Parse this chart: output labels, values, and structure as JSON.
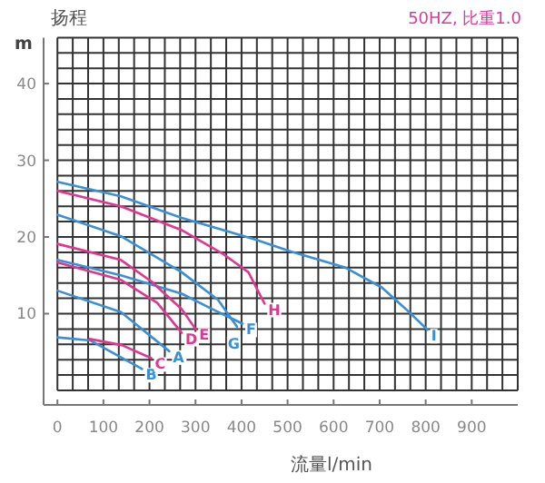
{
  "chart_data": {
    "type": "line",
    "ylabel": "扬程",
    "xlabel": "流量l/min",
    "annotations": [
      "m",
      "50HZ, 比重1.0"
    ],
    "xlim": [
      -30,
      1000
    ],
    "ylim": [
      -1.9,
      46
    ],
    "xticks": [
      0,
      100,
      200,
      300,
      400,
      500,
      600,
      700,
      800,
      900
    ],
    "yticks": [
      10,
      20,
      30,
      40
    ],
    "grid": true,
    "legend": false,
    "marker": "none",
    "line_style": "solid",
    "series": [
      {
        "name": "I",
        "color": "#3b8fd4",
        "x": [
          0,
          138,
          270,
          428,
          507,
          626,
          705,
          757,
          804
        ],
        "values": [
          27.2,
          25.3,
          22.5,
          19.7,
          18.1,
          16.0,
          13.4,
          10.6,
          7.9
        ]
      },
      {
        "name": "H",
        "color": "#e0368f",
        "x": [
          0,
          138,
          270,
          362,
          415,
          450
        ],
        "values": [
          26.0,
          24.0,
          20.9,
          17.7,
          15.4,
          11.3
        ]
      },
      {
        "name": "G",
        "color": "#3b8fd4",
        "x": [
          0,
          138,
          270,
          349,
          390
        ],
        "values": [
          22.9,
          20.1,
          15.4,
          11.8,
          8.3
        ]
      },
      {
        "name": "F",
        "color": "#3b8fd4",
        "x": [
          0,
          138,
          270,
          336,
          402
        ],
        "values": [
          17.0,
          15.0,
          12.6,
          10.6,
          8.7
        ]
      },
      {
        "name": "E",
        "color": "#e0368f",
        "x": [
          0,
          138,
          204,
          270,
          300
        ],
        "values": [
          19.1,
          17.0,
          14.2,
          10.6,
          8.0
        ]
      },
      {
        "name": "D",
        "color": "#e0368f",
        "x": [
          0,
          138,
          217,
          270
        ],
        "values": [
          16.7,
          14.4,
          11.4,
          7.5
        ]
      },
      {
        "name": "A",
        "color": "#3b8fd4",
        "x": [
          0,
          138,
          243
        ],
        "values": [
          13.0,
          10.2,
          5.1
        ]
      },
      {
        "name": "B",
        "color": "#3b8fd4",
        "x": [
          0,
          72,
          184
        ],
        "values": [
          6.9,
          6.5,
          2.8
        ]
      },
      {
        "name": "C",
        "color": "#e0368f",
        "x": [
          70,
          140,
          204
        ],
        "values": [
          6.7,
          5.9,
          4.2
        ]
      }
    ]
  }
}
